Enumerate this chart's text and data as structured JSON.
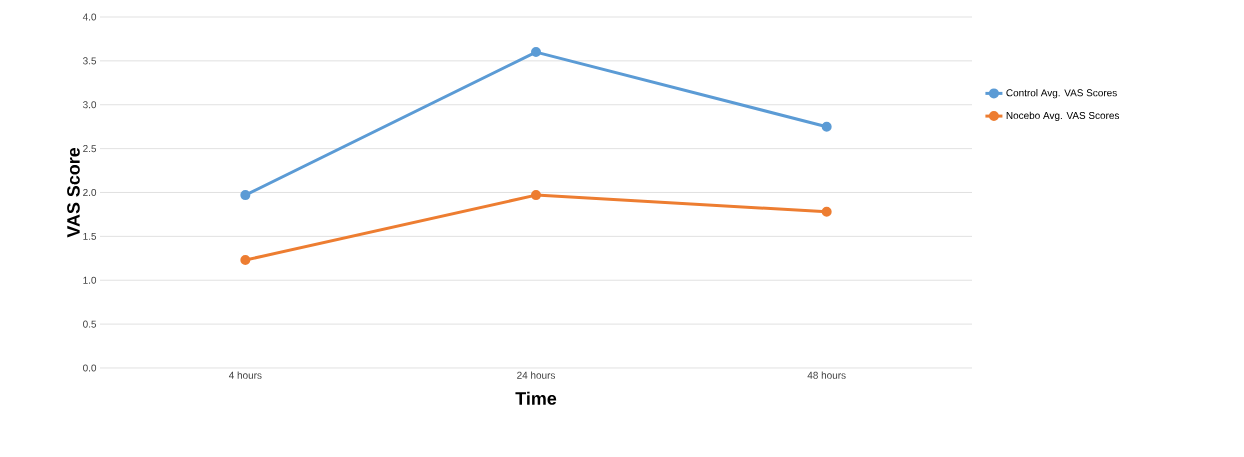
{
  "chart_data": {
    "type": "line",
    "xlabel": "Time",
    "ylabel": "VAS Score",
    "categories": [
      "4 hours",
      "24 hours",
      "48 hours"
    ],
    "series": [
      {
        "name": "Control Avg. VAS Scores",
        "color": "#5b9bd5",
        "values": [
          1.97,
          3.6,
          2.75
        ]
      },
      {
        "name": "Nocebo Avg. VAS Scores",
        "color": "#ed7d31",
        "values": [
          1.23,
          1.97,
          1.78
        ]
      }
    ],
    "ylim": [
      0,
      4
    ],
    "yticks": [
      {
        "value": 0,
        "label": "0.0"
      },
      {
        "value": 0.5,
        "label": "0.5"
      },
      {
        "value": 1,
        "label": "1.0"
      },
      {
        "value": 1.5,
        "label": "1.5"
      },
      {
        "value": 2,
        "label": "2.0"
      },
      {
        "value": 2.5,
        "label": "2.5"
      },
      {
        "value": 3,
        "label": "3.0"
      },
      {
        "value": 3.5,
        "label": "3.5"
      },
      {
        "value": 4,
        "label": "4.0"
      }
    ],
    "grid": "y",
    "legend": "right",
    "marker": "circle",
    "line_style": "solid"
  }
}
